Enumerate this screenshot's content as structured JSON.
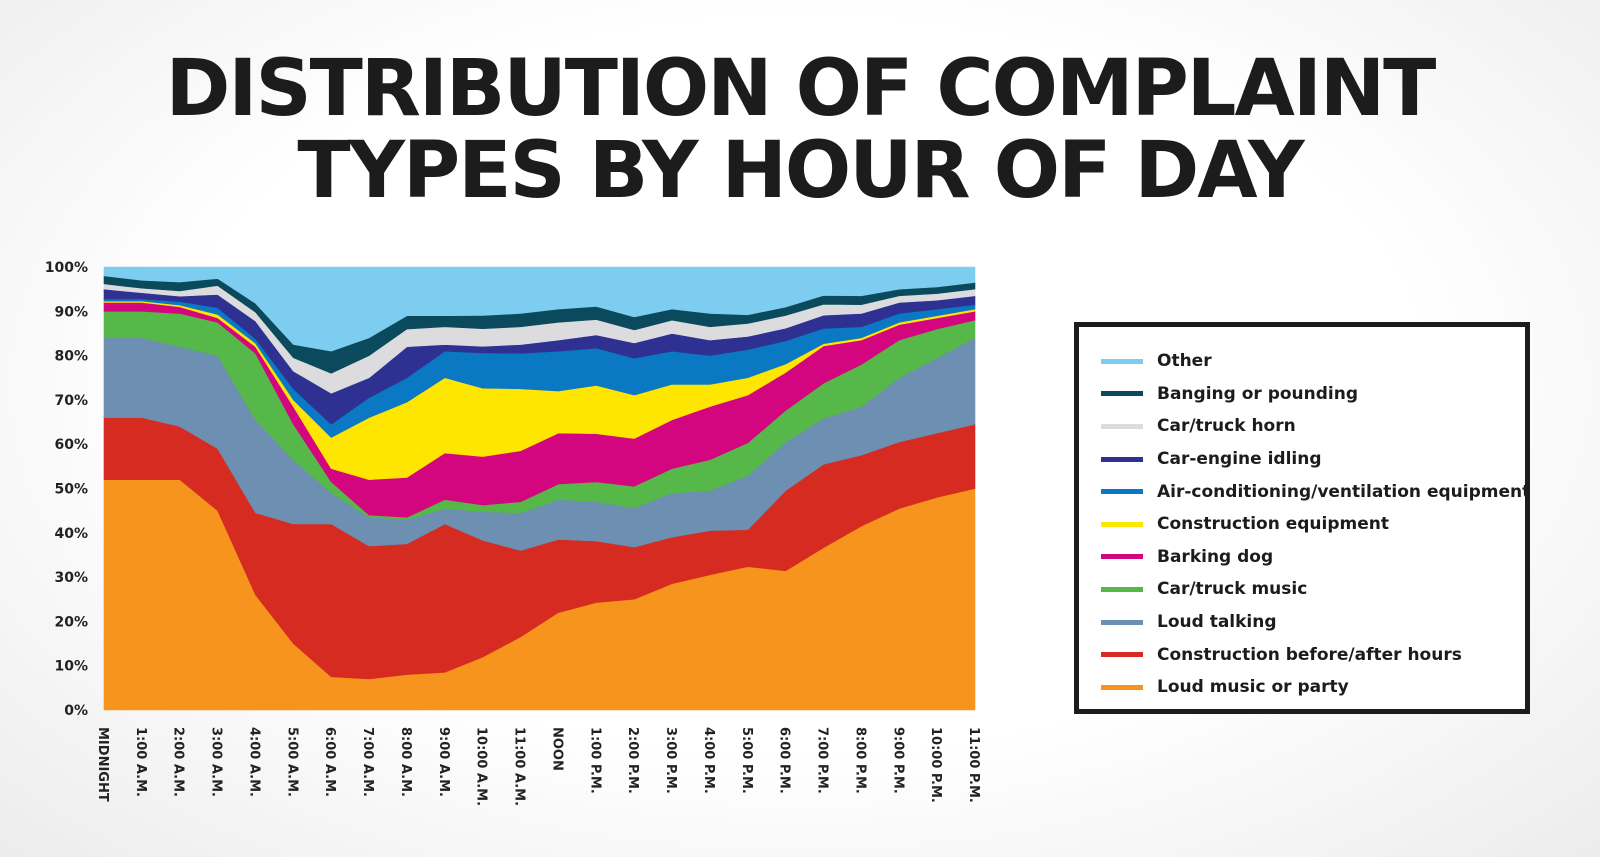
{
  "title_lines": [
    "DISTRIBUTION OF COMPLAINT",
    "TYPES BY HOUR OF DAY"
  ],
  "chart_data": {
    "type": "area",
    "stacked": true,
    "normalized": true,
    "title": "DISTRIBUTION OF COMPLAINT TYPES BY HOUR OF DAY",
    "xlabel": "",
    "ylabel": "",
    "ylim": [
      0,
      100
    ],
    "y_ticks": [
      "0%",
      "10%",
      "20%",
      "30%",
      "40%",
      "50%",
      "60%",
      "70%",
      "80%",
      "90%",
      "100%"
    ],
    "categories": [
      "MIDNIGHT",
      "1:00 A.M.",
      "2:00 A.M.",
      "3:00 A.M.",
      "4:00 A.M.",
      "5:00 A.M.",
      "6:00 A.M.",
      "7:00 A.M.",
      "8:00 A.M.",
      "9:00 A.M.",
      "10:00 A.M.",
      "11:00 A.M.",
      "NOON",
      "1:00 P.M.",
      "2:00 P.M.",
      "3:00 P.M.",
      "4:00 P.M.",
      "5:00 P.M.",
      "6:00 P.M.",
      "7:00 P.M.",
      "8:00 P.M.",
      "9:00 P.M.",
      "10:00 P.M.",
      "11:00 P.M."
    ],
    "legend_position": "right",
    "grid": false,
    "series": [
      {
        "name": "Loud music or party",
        "color": "#f7941d",
        "values": [
          52,
          52,
          52,
          45,
          26,
          15,
          7.5,
          7,
          8,
          8.5,
          12,
          16.5,
          22,
          24.5,
          25.5,
          28.5,
          30.5,
          33,
          33,
          37,
          41.5,
          45.5,
          48,
          50
        ]
      },
      {
        "name": "Construction before/after hours",
        "color": "#d62b20",
        "values": [
          14,
          14,
          12,
          14,
          18.5,
          27,
          34.5,
          30,
          29.5,
          33.5,
          26.5,
          19.5,
          16.5,
          14,
          12,
          10.5,
          10,
          8.5,
          19,
          19,
          16,
          15,
          14.5,
          14.5
        ]
      },
      {
        "name": "Loud talking",
        "color": "#6c8fb2",
        "values": [
          18,
          18,
          18,
          21,
          21,
          14.5,
          7,
          6.5,
          5.5,
          3.5,
          6.5,
          8.5,
          9,
          9,
          9,
          10,
          9,
          12.5,
          11.5,
          10.5,
          11,
          14.5,
          17,
          19.5
        ]
      },
      {
        "name": "Car/truck music",
        "color": "#56b848",
        "values": [
          6,
          6,
          7.5,
          7.5,
          15,
          8,
          2.5,
          0.5,
          0.5,
          2,
          1.5,
          2.5,
          3.5,
          4.5,
          5,
          5.5,
          7,
          7.5,
          7.5,
          8,
          9.5,
          8.5,
          6.5,
          4
        ]
      },
      {
        "name": "Barking dog",
        "color": "#d4067f",
        "values": [
          2,
          2,
          1.5,
          1,
          1.5,
          4,
          3,
          8,
          9,
          10.5,
          11,
          11.5,
          11.5,
          11,
          11,
          11,
          12,
          11,
          9,
          8.5,
          5.5,
          3.5,
          2.5,
          2
        ]
      },
      {
        "name": "Construction equipment",
        "color": "#ffe600",
        "values": [
          0.3,
          0.3,
          0.4,
          0.8,
          0.8,
          1.5,
          7,
          14,
          17,
          17,
          15.5,
          14,
          9.5,
          11,
          10,
          8,
          5,
          4,
          2,
          0.5,
          0.5,
          0.5,
          0.5,
          0.5
        ]
      },
      {
        "name": "Air-conditioning/ventilation equipment",
        "color": "#0a78c2",
        "values": [
          0.5,
          0.5,
          0.8,
          1.5,
          1,
          2.5,
          3,
          4.5,
          5.5,
          6,
          8,
          8,
          9,
          8.5,
          8.5,
          7.5,
          6.5,
          6.5,
          5.5,
          3.5,
          2.5,
          2,
          1.5,
          1
        ]
      },
      {
        "name": "Car-engine idling",
        "color": "#2e3192",
        "values": [
          2.2,
          1.4,
          1.2,
          3,
          4,
          4,
          7,
          4.5,
          7,
          1.5,
          1.5,
          2,
          2.5,
          3,
          3.5,
          4,
          3.5,
          3,
          3,
          3,
          3,
          2.5,
          2,
          2
        ]
      },
      {
        "name": "Car/truck horn",
        "color": "#dcdcde",
        "values": [
          1.2,
          1,
          1.2,
          2,
          2,
          3,
          4.5,
          5,
          4,
          4,
          4,
          4,
          4,
          3.5,
          3,
          3,
          3,
          3,
          3,
          2.5,
          2,
          1.5,
          1.5,
          1.5
        ]
      },
      {
        "name": "Banging or pounding",
        "color": "#0b4a5c",
        "values": [
          1.8,
          1.8,
          2,
          1.6,
          2,
          3,
          5,
          4,
          3,
          2.5,
          3,
          3,
          3,
          3,
          3,
          2.5,
          3,
          2,
          2,
          2,
          2,
          1.5,
          1.5,
          1.5
        ]
      },
      {
        "name": "Other",
        "color": "#7ccdef",
        "values": [
          2,
          3,
          3.4,
          2.6,
          8.2,
          17.5,
          19,
          16,
          11,
          11,
          11,
          10.5,
          9.5,
          9,
          11.5,
          9.5,
          10.5,
          11,
          9.5,
          6.5,
          6.5,
          5,
          4.5,
          3.5
        ]
      }
    ]
  }
}
